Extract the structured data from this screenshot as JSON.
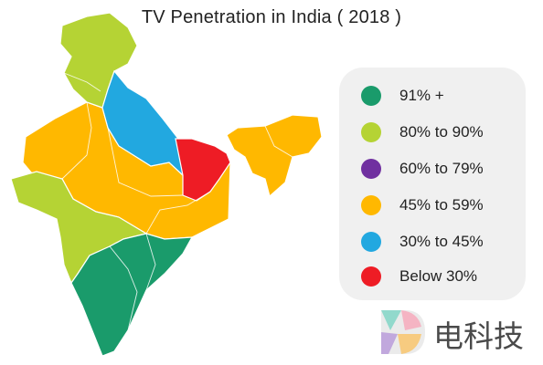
{
  "title": "TV Penetration in India ( 2018 )",
  "legend": [
    {
      "label": "91% +",
      "color": "#1a9b6b"
    },
    {
      "label": "80% to 90%",
      "color": "#b5d334"
    },
    {
      "label": "60% to 79%",
      "color": "#7030a0"
    },
    {
      "label": "45% to 59%",
      "color": "#ffb800"
    },
    {
      "label": "30% to 45%",
      "color": "#22a8e0"
    },
    {
      "label": "Below 30%",
      "color": "#ee1c25"
    }
  ],
  "regions": [
    {
      "name": "north-region",
      "category": "80% to 90%",
      "color": "#b5d334"
    },
    {
      "name": "west-region",
      "category": "80% to 90%",
      "color": "#b5d334"
    },
    {
      "name": "central-region",
      "category": "45% to 59%",
      "color": "#ffb800"
    },
    {
      "name": "northeast-region",
      "category": "45% to 59%",
      "color": "#ffb800"
    },
    {
      "name": "uttar-pradesh-region",
      "category": "30% to 45%",
      "color": "#22a8e0"
    },
    {
      "name": "bihar-region",
      "category": "Below 30%",
      "color": "#ee1c25"
    },
    {
      "name": "south-region",
      "category": "91% +",
      "color": "#1a9b6b"
    }
  ],
  "watermark": {
    "text": "电科技"
  }
}
